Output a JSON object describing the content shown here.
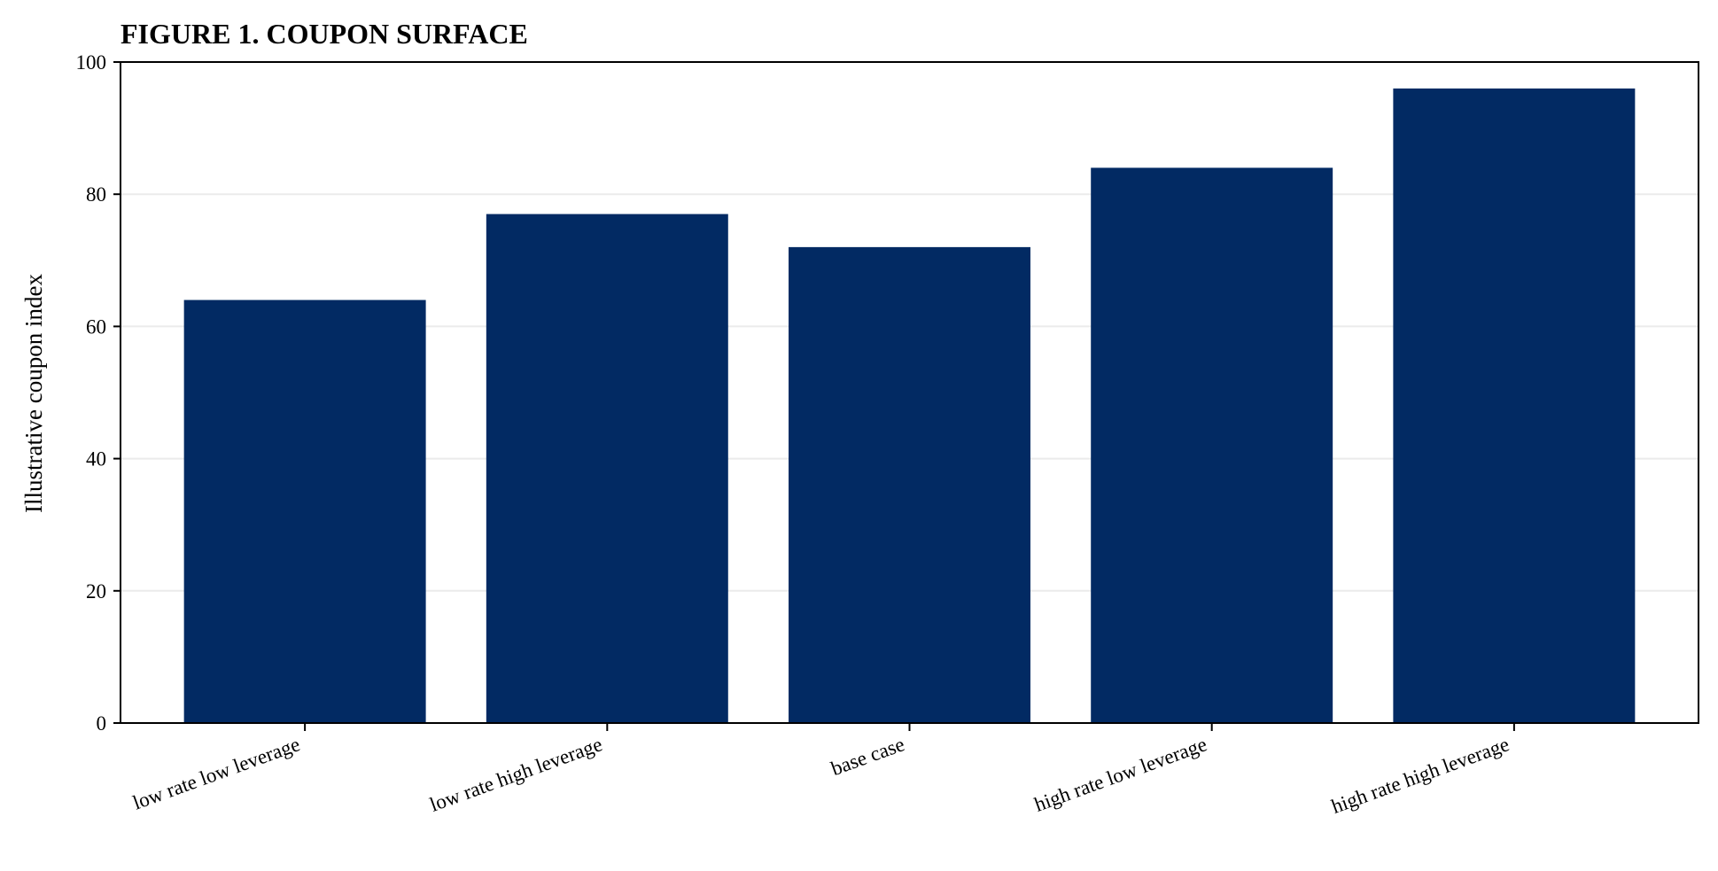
{
  "chart_data": {
    "type": "bar",
    "title": "FIGURE 1. COUPON SURFACE",
    "xlabel": "",
    "ylabel": "Illustrative coupon index",
    "categories": [
      "low rate low leverage",
      "low rate high leverage",
      "base case",
      "high rate low leverage",
      "high rate high leverage"
    ],
    "values": [
      64,
      77,
      72,
      84,
      96
    ],
    "ylim": [
      0,
      100
    ],
    "yticks": [
      "0",
      "20",
      "40",
      "60",
      "80",
      "100"
    ],
    "grid": "horizontal",
    "bar_color": "#022a63",
    "grid_color": "#ebebeb"
  }
}
